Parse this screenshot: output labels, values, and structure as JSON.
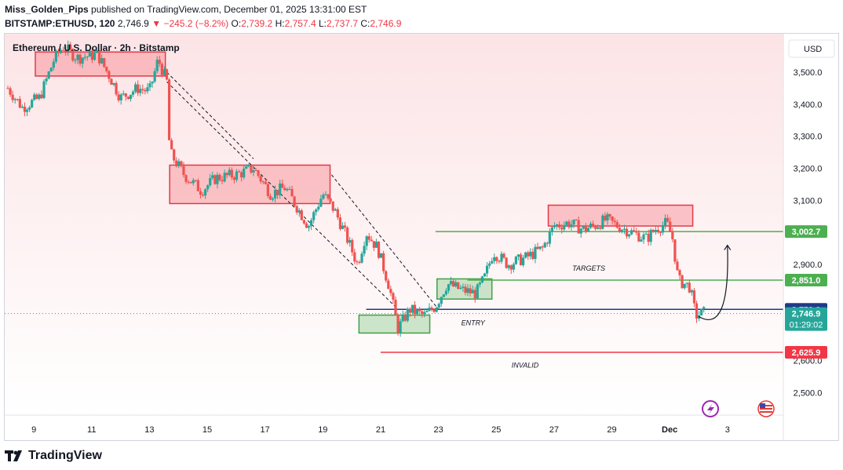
{
  "header": {
    "author": "Miss_Golden_Pips",
    "published_text": "published on TradingView.com, December 01, 2025 13:31:00 EST",
    "symbol": "BITSTAMP:ETHUSD, 120",
    "last": "2,746.9",
    "change": "−245.2 (−8.2%)",
    "o_label": "O:",
    "o": "2,739.2",
    "h_label": "H:",
    "h": "2,757.4",
    "l_label": "L:",
    "l": "2,737.7",
    "c_label": "C:",
    "c": "2,746.9"
  },
  "footer": {
    "brand": "TradingView",
    "logo_icon": "tradingview-logo-icon"
  },
  "colors": {
    "up": "#26a69a",
    "down": "#ef5350",
    "resistance": "#f23645",
    "support": "#4caf50",
    "entry": "#1e3a8a",
    "bg": "#fdeced"
  },
  "chart_data": {
    "type": "candlestick",
    "title": "Ethereum / U.S. Dollar · 2h · Bitstamp",
    "currency_button": "USD",
    "ylim": [
      2430,
      3620
    ],
    "xlim": [
      8.1,
      4.5
    ],
    "y_ticks": [
      "3,500.0",
      "3,400.0",
      "3,300.0",
      "3,200.0",
      "3,100.0",
      "2,900.0",
      "2,600.0",
      "2,500.0"
    ],
    "y_tick_values": [
      3500,
      3400,
      3300,
      3200,
      3100,
      2900,
      2600,
      2500
    ],
    "x_ticks": [
      {
        "label": "9",
        "d": 9
      },
      {
        "label": "11",
        "d": 11
      },
      {
        "label": "13",
        "d": 13
      },
      {
        "label": "15",
        "d": 15
      },
      {
        "label": "17",
        "d": 17
      },
      {
        "label": "19",
        "d": 19
      },
      {
        "label": "21",
        "d": 21
      },
      {
        "label": "23",
        "d": 23
      },
      {
        "label": "25",
        "d": 25
      },
      {
        "label": "27",
        "d": 27
      },
      {
        "label": "29",
        "d": 29
      },
      {
        "label": "Dec",
        "d": 31,
        "bold": true
      },
      {
        "label": "3",
        "d": 33
      }
    ],
    "price_path": [
      [
        8.1,
        3450
      ],
      [
        8.6,
        3390
      ],
      [
        9.2,
        3420
      ],
      [
        9.7,
        3540
      ],
      [
        10.0,
        3580
      ],
      [
        10.5,
        3545
      ],
      [
        11.2,
        3555
      ],
      [
        11.6,
        3490
      ],
      [
        12.0,
        3420
      ],
      [
        12.6,
        3450
      ],
      [
        13.0,
        3440
      ],
      [
        13.3,
        3540
      ],
      [
        13.6,
        3470
      ],
      [
        13.7,
        3250
      ],
      [
        14.2,
        3180
      ],
      [
        14.8,
        3130
      ],
      [
        15.3,
        3170
      ],
      [
        16.0,
        3180
      ],
      [
        16.6,
        3200
      ],
      [
        17.2,
        3120
      ],
      [
        17.7,
        3140
      ],
      [
        18.1,
        3080
      ],
      [
        18.5,
        3020
      ],
      [
        19.0,
        3120
      ],
      [
        19.4,
        3070
      ],
      [
        19.8,
        2990
      ],
      [
        20.2,
        2900
      ],
      [
        20.5,
        3000
      ],
      [
        20.9,
        2950
      ],
      [
        21.3,
        2830
      ],
      [
        21.6,
        2700
      ],
      [
        22.0,
        2760
      ],
      [
        22.5,
        2740
      ],
      [
        22.9,
        2770
      ],
      [
        23.3,
        2840
      ],
      [
        23.8,
        2820
      ],
      [
        24.3,
        2810
      ],
      [
        24.6,
        2860
      ],
      [
        24.9,
        2940
      ],
      [
        25.4,
        2900
      ],
      [
        26.0,
        2920
      ],
      [
        26.6,
        2950
      ],
      [
        27.0,
        3020
      ],
      [
        27.5,
        3030
      ],
      [
        28.0,
        3010
      ],
      [
        28.4,
        3020
      ],
      [
        28.8,
        3040
      ],
      [
        29.2,
        3020
      ],
      [
        29.7,
        3000
      ],
      [
        30.2,
        2980
      ],
      [
        30.5,
        3010
      ],
      [
        30.9,
        3030
      ],
      [
        31.1,
        2980
      ],
      [
        31.3,
        2850
      ],
      [
        31.7,
        2830
      ],
      [
        31.9,
        2740
      ],
      [
        32.2,
        2750
      ]
    ],
    "zones": [
      {
        "kind": "resistance",
        "x0": 9.05,
        "x1": 13.55,
        "y0": 3488,
        "y1": 3563
      },
      {
        "kind": "resistance",
        "x0": 13.7,
        "x1": 19.25,
        "y0": 3090,
        "y1": 3210
      },
      {
        "kind": "resistance",
        "x0": 26.8,
        "x1": 31.8,
        "y0": 3020,
        "y1": 3085
      },
      {
        "kind": "support",
        "x0": 22.95,
        "x1": 24.85,
        "y0": 2792,
        "y1": 2855
      },
      {
        "kind": "support",
        "x0": 20.25,
        "x1": 22.7,
        "y0": 2686,
        "y1": 2742
      }
    ],
    "levels": [
      {
        "name": "target-level-1",
        "value": 3002.7,
        "label": "3,002.7",
        "color": "#4caf50",
        "x0": 22.9
      },
      {
        "name": "target-level-2",
        "value": 2851.0,
        "label": "2,851.0",
        "color": "#4caf50",
        "x0": 24.0
      },
      {
        "name": "entry-level",
        "value": 2759.9,
        "label": "2,759.9",
        "color": "#1e3a8a",
        "x0": 20.5
      },
      {
        "name": "invalid-level",
        "value": 2625.9,
        "label": "2,625.9",
        "color": "#f23645",
        "x0": 21.0
      }
    ],
    "last_price": {
      "value": 2746.9,
      "label": "2,746.9",
      "countdown": "01:29:02",
      "color": "#26a69a"
    },
    "annotations": [
      {
        "name": "targets-annotation",
        "text": "TARGETS",
        "d": 28.2,
        "y": 2880
      },
      {
        "name": "entry-annotation",
        "text": "ENTRY",
        "d": 24.2,
        "y": 2710
      },
      {
        "name": "invalid-annotation",
        "text": "INVALID",
        "d": 26.0,
        "y": 2578
      }
    ],
    "trendlines": [
      {
        "from": [
          13.6,
          3500
        ],
        "to": [
          16.6,
          3230
        ]
      },
      {
        "from": [
          13.6,
          3470
        ],
        "to": [
          21.6,
          2760
        ]
      },
      {
        "from": [
          19.3,
          3180
        ],
        "to": [
          23.0,
          2760
        ]
      }
    ],
    "arrow": {
      "from": [
        32.0,
        2738
      ],
      "mid": [
        33.1,
        2740
      ],
      "to": [
        33.0,
        2960
      ]
    },
    "icons": [
      "lightning-event-icon",
      "us-flag-icon"
    ]
  }
}
